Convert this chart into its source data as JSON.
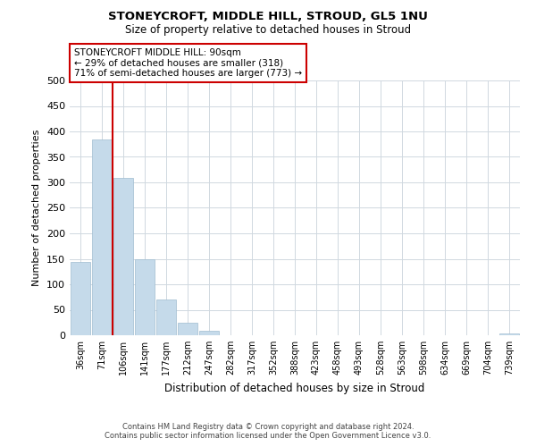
{
  "title": "STONEYCROFT, MIDDLE HILL, STROUD, GL5 1NU",
  "subtitle": "Size of property relative to detached houses in Stroud",
  "xlabel": "Distribution of detached houses by size in Stroud",
  "ylabel": "Number of detached properties",
  "bar_color": "#c5daea",
  "vline_color": "#cc0000",
  "vline_x": 1.5,
  "bin_labels": [
    "36sqm",
    "71sqm",
    "106sqm",
    "141sqm",
    "177sqm",
    "212sqm",
    "247sqm",
    "282sqm",
    "317sqm",
    "352sqm",
    "388sqm",
    "423sqm",
    "458sqm",
    "493sqm",
    "528sqm",
    "563sqm",
    "598sqm",
    "634sqm",
    "669sqm",
    "704sqm",
    "739sqm"
  ],
  "bar_heights": [
    144,
    384,
    309,
    149,
    70,
    24,
    9,
    0,
    0,
    0,
    0,
    0,
    0,
    0,
    0,
    0,
    0,
    0,
    0,
    0,
    3
  ],
  "ylim": [
    0,
    500
  ],
  "yticks": [
    0,
    50,
    100,
    150,
    200,
    250,
    300,
    350,
    400,
    450,
    500
  ],
  "annotation_title": "STONEYCROFT MIDDLE HILL: 90sqm",
  "annotation_line1": "← 29% of detached houses are smaller (318)",
  "annotation_line2": "71% of semi-detached houses are larger (773) →",
  "footer_line1": "Contains HM Land Registry data © Crown copyright and database right 2024.",
  "footer_line2": "Contains public sector information licensed under the Open Government Licence v3.0.",
  "background_color": "#ffffff",
  "grid_color": "#d0d8e0"
}
